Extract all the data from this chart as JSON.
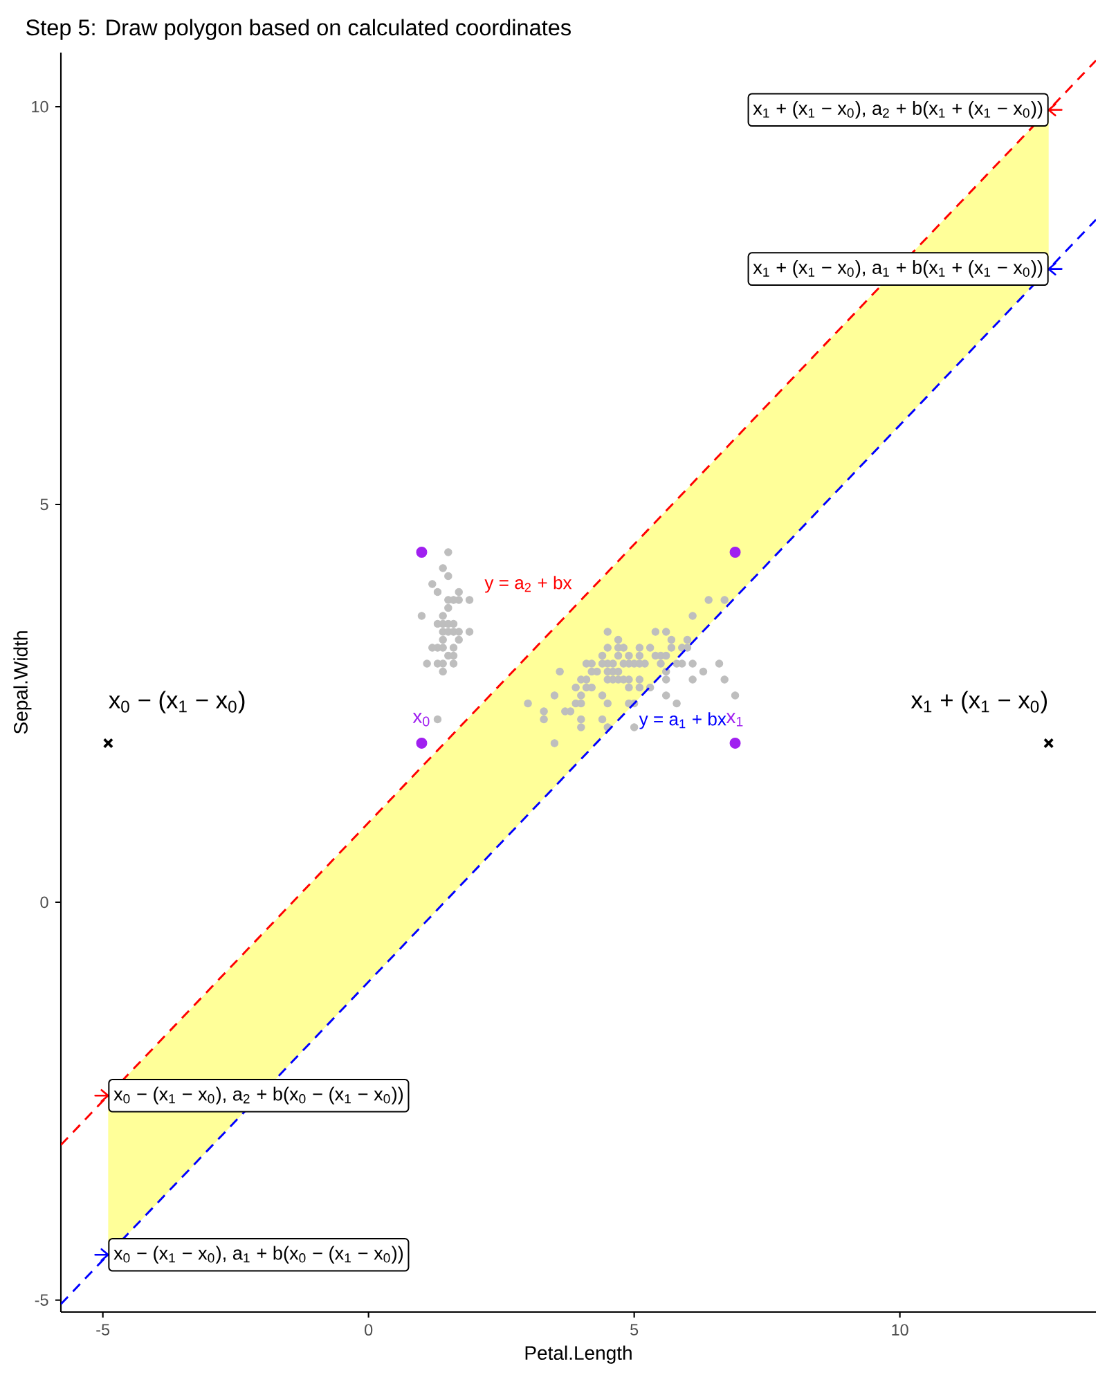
{
  "chart_data": {
    "type": "scatter",
    "title": "Step 5: Draw polygon based on calculated coordinates",
    "xlabel": "Petal.Length",
    "ylabel": "Sepal.Width",
    "xlim": [
      -5.79,
      13.69
    ],
    "ylim": [
      -5.15,
      10.68
    ],
    "xticks": [
      -5,
      0,
      5,
      10
    ],
    "yticks": [
      -5,
      0,
      5,
      10
    ],
    "series": [
      {
        "type": "area",
        "color": "#ffff99",
        "x": [
          -4.9,
          -4.9,
          12.8,
          12.8
        ],
        "values": [
          -2.43,
          -4.43,
          7.96,
          9.96
        ],
        "value_labels": [
          "x$_{0}$ − (x$_{1}$ − x$_{0}$), a$_{2}$ + b(x$_{0}$ − (x$_{1}$ − x$_{0}$))",
          "x$_{0}$ − (x$_{1}$ − x$_{0}$), a$_{1}$ + b(x$_{0}$ − (x$_{1}$ − x$_{0}$))",
          "x$_{1}$ + (x$_{1}$ − x$_{0}$), a$_{1}$ + b(x$_{1}$ + (x$_{1}$ − x$_{0}$))",
          "x$_{1}$ + (x$_{1}$ − x$_{0}$), a$_{2}$ + b(x$_{1}$ + (x$_{1}$ − x$_{0}$))"
        ]
      },
      {
        "color": "#bebebe",
        "marker": "circle",
        "x": [
          1.4,
          1.4,
          1.3,
          1.5,
          1.4,
          1.7,
          1.4,
          1.5,
          1.4,
          1.5,
          1.6,
          1.1,
          1.2,
          1.5,
          1.3,
          1.7,
          1.5,
          1.7,
          1.0,
          1.7,
          1.9,
          1.6,
          1.5,
          1.6,
          1.6,
          1.5,
          1.4,
          1.2,
          1.3,
          1.3,
          1.3,
          1.6,
          1.9,
          1.6,
          1.4,
          1.4,
          4.7,
          4.5,
          4.9,
          4.0,
          4.6,
          4.5,
          4.7,
          3.3,
          4.6,
          3.9,
          3.5,
          4.2,
          4.0,
          4.7,
          3.6,
          4.4,
          4.5,
          4.1,
          4.5,
          3.9,
          4.8,
          4.0,
          4.9,
          4.7,
          4.3,
          4.4,
          4.8,
          5.0,
          4.5,
          3.5,
          3.8,
          3.7,
          5.1,
          4.5,
          4.7,
          4.4,
          4.1,
          4.0,
          4.4,
          4.6,
          4.0,
          3.3,
          4.2,
          4.2,
          3.0,
          4.1,
          6.0,
          5.9,
          5.6,
          5.8,
          6.6,
          4.5,
          6.3,
          5.8,
          6.1,
          5.1,
          5.3,
          5.5,
          5.0,
          5.1,
          5.3,
          6.7,
          6.9,
          5.0,
          5.7,
          4.9,
          6.7,
          4.9,
          5.7,
          6.0,
          4.9,
          5.6,
          6.1,
          6.4,
          5.6,
          6.1,
          5.6,
          5.5,
          4.8,
          5.4,
          5.6,
          5.1,
          5.9,
          5.2,
          5.4,
          5.1
        ],
        "values": [
          3.5,
          3.0,
          3.2,
          3.1,
          3.6,
          3.9,
          3.4,
          3.4,
          2.9,
          3.7,
          3.4,
          3.0,
          4.0,
          4.4,
          3.9,
          3.8,
          3.8,
          3.4,
          3.6,
          3.3,
          3.4,
          3.0,
          3.5,
          3.2,
          3.1,
          4.1,
          4.2,
          3.2,
          3.5,
          3.0,
          2.3,
          3.5,
          3.8,
          3.8,
          3.2,
          3.3,
          3.2,
          3.2,
          3.1,
          2.3,
          2.8,
          2.8,
          3.3,
          2.4,
          2.9,
          2.7,
          2.0,
          3.0,
          2.2,
          2.9,
          2.9,
          3.1,
          3.0,
          2.7,
          2.2,
          2.5,
          3.2,
          2.8,
          2.5,
          2.8,
          2.9,
          3.0,
          2.8,
          3.0,
          2.9,
          2.6,
          2.4,
          2.4,
          2.7,
          3.4,
          3.1,
          2.3,
          3.0,
          2.5,
          2.6,
          3.0,
          2.6,
          2.3,
          2.7,
          2.9,
          2.5,
          2.8,
          3.3,
          3.0,
          2.9,
          3.0,
          3.0,
          2.5,
          2.9,
          2.5,
          3.6,
          3.2,
          2.7,
          3.0,
          2.5,
          2.8,
          3.2,
          3.8,
          2.6,
          2.2,
          3.2,
          2.8,
          2.8,
          2.7,
          3.3,
          3.2,
          3.0,
          2.8,
          2.8,
          3.8,
          2.6,
          3.0,
          3.4,
          3.1,
          3.0,
          3.1,
          3.1,
          3.1,
          3.2,
          3.0,
          3.4,
          3.0
        ]
      },
      {
        "type": "line",
        "name": "y = a$_{2}$ + bx",
        "color": "#ff0000",
        "line_style": "dashed",
        "marker": "none",
        "x": [
          -5.79,
          13.69
        ],
        "values": [
          -3.05,
          10.58
        ]
      },
      {
        "type": "line",
        "name": "y = a$_{1}$ + bx",
        "color": "#0000ff",
        "line_style": "dashed",
        "marker": "none",
        "x": [
          -5.79,
          13.69
        ],
        "values": [
          -5.05,
          8.58
        ]
      },
      {
        "color": "#a020f0",
        "marker": "circle",
        "x": [
          1,
          1,
          6.9,
          6.9
        ],
        "values": [
          4.4,
          2,
          4.4,
          2
        ]
      },
      {
        "color": "#000000",
        "marker": "cross",
        "x": [
          -4.9,
          12.8
        ],
        "values": [
          2,
          2
        ]
      }
    ],
    "annotations": [
      {
        "text": "x$_{0}$",
        "x": 1,
        "y": 2
      },
      {
        "text": "x$_{1}$",
        "x": 6.9,
        "y": 2
      },
      {
        "text": "x$_{0}$ − (x$_{1}$ − x$_{0}$)",
        "x": -4.9,
        "y": 2
      },
      {
        "text": "x$_{1}$ + (x$_{1}$ − x$_{0}$)",
        "x": 12.8,
        "y": 2
      }
    ]
  }
}
